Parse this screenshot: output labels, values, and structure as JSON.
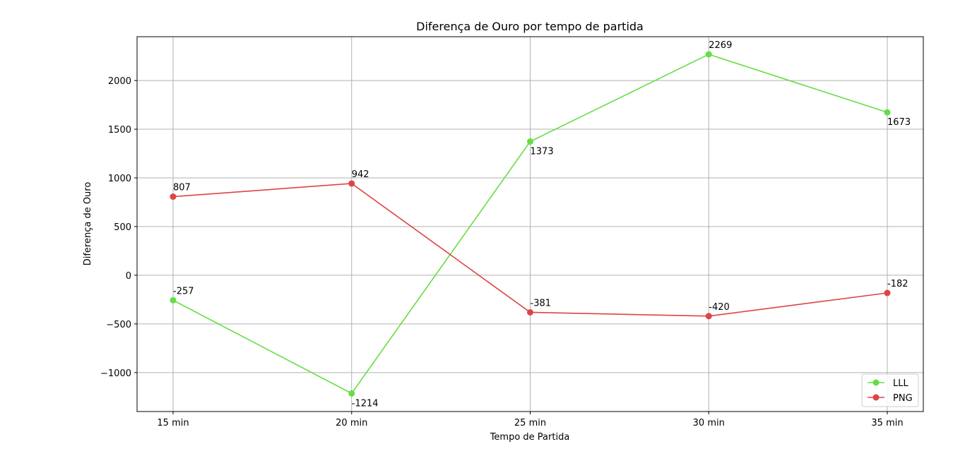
{
  "chart_data": {
    "type": "line",
    "title": "Diferença de Ouro por tempo de partida",
    "xlabel": "Tempo de Partida",
    "ylabel": "Diferença de Ouro",
    "categories": [
      "15 min",
      "20 min",
      "25 min",
      "30 min",
      "35 min"
    ],
    "ylim": [
      -1400,
      2450
    ],
    "yticks": [
      -1000,
      -500,
      0,
      500,
      1000,
      1500,
      2000
    ],
    "ytick_labels": [
      "−1000",
      "−500",
      "0",
      "500",
      "1000",
      "1500",
      "2000"
    ],
    "grid": true,
    "legend_position": "lower-right",
    "series": [
      {
        "name": "LLL",
        "color": "#66dd44",
        "values": [
          -257,
          -1214,
          1373,
          2269,
          1673
        ],
        "labels": [
          "-257",
          "-1214",
          "1373",
          "2269",
          "1673"
        ],
        "label_side": [
          "above",
          "below",
          "below",
          "above",
          "below"
        ]
      },
      {
        "name": "PNG",
        "color": "#dd4444",
        "values": [
          807,
          942,
          -381,
          -420,
          -182
        ],
        "labels": [
          "807",
          "942",
          "-381",
          "-420",
          "-182"
        ],
        "label_side": [
          "above",
          "above",
          "above",
          "above",
          "above"
        ]
      }
    ]
  }
}
